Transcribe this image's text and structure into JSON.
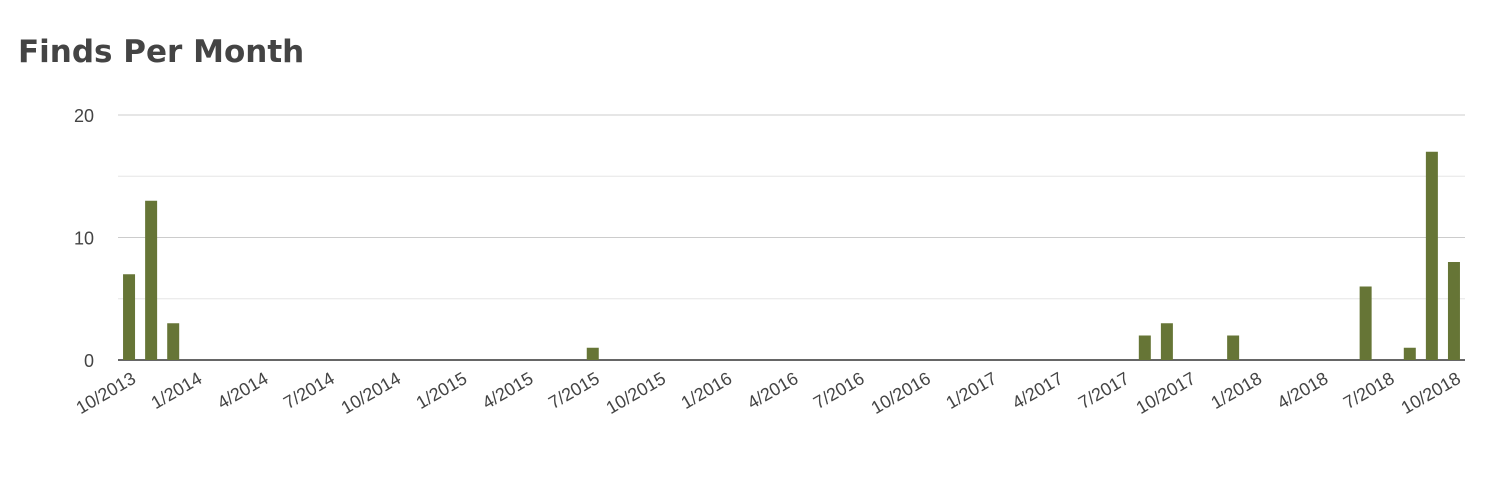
{
  "chart_data": {
    "type": "bar",
    "title": "Finds Per Month",
    "categories": [
      "10/2013",
      null,
      null,
      "1/2014",
      null,
      null,
      "4/2014",
      null,
      null,
      "7/2014",
      null,
      null,
      "10/2014",
      null,
      null,
      "1/2015",
      null,
      null,
      "4/2015",
      null,
      null,
      "7/2015",
      null,
      null,
      "10/2015",
      null,
      null,
      "1/2016",
      null,
      null,
      "4/2016",
      null,
      null,
      "7/2016",
      null,
      null,
      "10/2016",
      null,
      null,
      "1/2017",
      null,
      null,
      "4/2017",
      null,
      null,
      "7/2017",
      null,
      null,
      "10/2017",
      null,
      null,
      "1/2018",
      null,
      null,
      "4/2018",
      null,
      null,
      "7/2018",
      null,
      null,
      "10/2018"
    ],
    "values": [
      7,
      13,
      3,
      0,
      0,
      0,
      0,
      0,
      0,
      0,
      0,
      0,
      0,
      0,
      0,
      0,
      0,
      0,
      0,
      0,
      0,
      1,
      0,
      0,
      0,
      0,
      0,
      0,
      0,
      0,
      0,
      0,
      0,
      0,
      0,
      0,
      0,
      0,
      0,
      0,
      0,
      0,
      0,
      0,
      0,
      0,
      2,
      3,
      0,
      0,
      2,
      0,
      0,
      0,
      0,
      0,
      6,
      0,
      1,
      17,
      8
    ],
    "color": "#667536",
    "ylim": [
      0,
      20
    ],
    "yticks": [
      0,
      10,
      20
    ],
    "minor_yticks": [
      5,
      15
    ],
    "grid": true
  }
}
